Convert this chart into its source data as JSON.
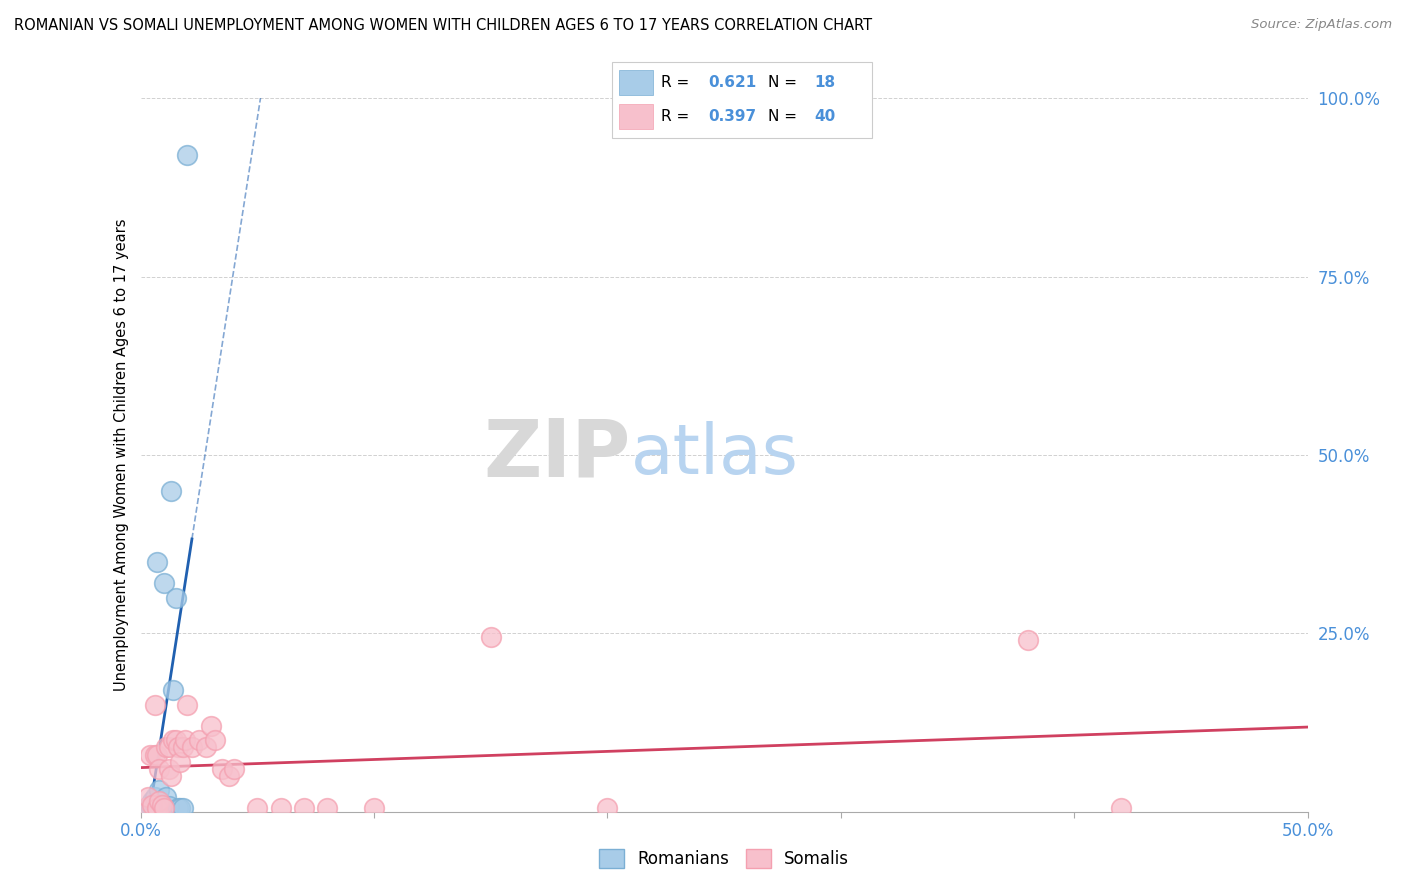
{
  "title": "ROMANIAN VS SOMALI UNEMPLOYMENT AMONG WOMEN WITH CHILDREN AGES 6 TO 17 YEARS CORRELATION CHART",
  "source": "Source: ZipAtlas.com",
  "ylabel": "Unemployment Among Women with Children Ages 6 to 17 years",
  "tick_color": "#4a90d9",
  "xlim": [
    0,
    0.5
  ],
  "ylim": [
    0,
    1.0
  ],
  "xticks": [
    0.0,
    0.1,
    0.2,
    0.3,
    0.4,
    0.5
  ],
  "xticklabels": [
    "0.0%",
    "",
    "",
    "",
    "",
    "50.0%"
  ],
  "yticks": [
    0.0,
    0.25,
    0.5,
    0.75,
    1.0
  ],
  "yticklabels": [
    "",
    "25.0%",
    "50.0%",
    "75.0%",
    "100.0%"
  ],
  "romanian_R": "0.621",
  "romanian_N": "18",
  "somali_R": "0.397",
  "somali_N": "40",
  "romanian_color": "#a8cce8",
  "romanian_edge_color": "#7bafd4",
  "somali_color": "#f7c0cc",
  "somali_edge_color": "#f4a0b0",
  "romanian_line_color": "#2060b0",
  "somali_line_color": "#d04060",
  "watermark_ZIP_color": "#d8d8d8",
  "watermark_atlas_color": "#b8d4f0",
  "romanian_x": [
    0.003,
    0.004,
    0.005,
    0.006,
    0.007,
    0.007,
    0.008,
    0.009,
    0.01,
    0.011,
    0.012,
    0.013,
    0.014,
    0.015,
    0.016,
    0.017,
    0.018,
    0.02
  ],
  "romanian_y": [
    0.005,
    0.01,
    0.015,
    0.02,
    0.008,
    0.35,
    0.03,
    0.01,
    0.32,
    0.02,
    0.008,
    0.45,
    0.17,
    0.3,
    0.005,
    0.005,
    0.005,
    0.92
  ],
  "somali_x": [
    0.002,
    0.003,
    0.004,
    0.005,
    0.006,
    0.006,
    0.007,
    0.007,
    0.008,
    0.008,
    0.009,
    0.01,
    0.011,
    0.012,
    0.012,
    0.013,
    0.014,
    0.015,
    0.016,
    0.017,
    0.018,
    0.019,
    0.02,
    0.022,
    0.025,
    0.028,
    0.03,
    0.032,
    0.035,
    0.038,
    0.04,
    0.05,
    0.06,
    0.07,
    0.08,
    0.1,
    0.15,
    0.2,
    0.38,
    0.42
  ],
  "somali_y": [
    0.005,
    0.02,
    0.08,
    0.01,
    0.15,
    0.08,
    0.005,
    0.08,
    0.015,
    0.06,
    0.01,
    0.005,
    0.09,
    0.09,
    0.06,
    0.05,
    0.1,
    0.1,
    0.09,
    0.07,
    0.09,
    0.1,
    0.15,
    0.09,
    0.1,
    0.09,
    0.12,
    0.1,
    0.06,
    0.05,
    0.06,
    0.005,
    0.005,
    0.005,
    0.005,
    0.005,
    0.245,
    0.005,
    0.24,
    0.005
  ],
  "background_color": "#ffffff",
  "grid_color": "#cccccc"
}
